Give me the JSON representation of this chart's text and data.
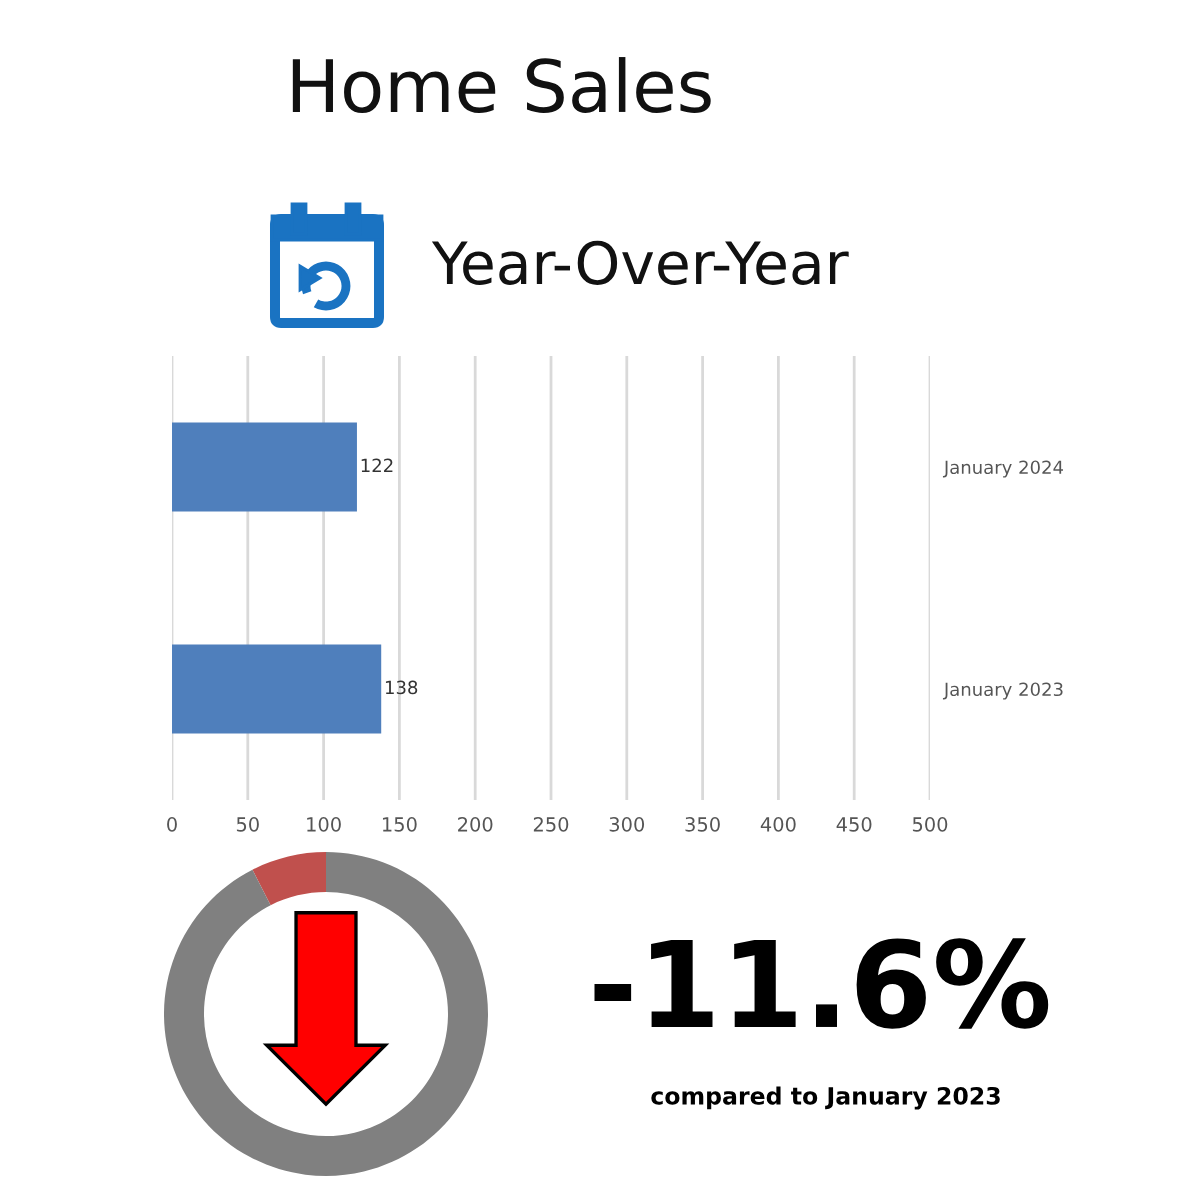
{
  "chart_data": [
    {
      "type": "bar",
      "title": "Home Sales",
      "subtitle": "Year-Over-Year",
      "orientation": "horizontal",
      "categories": [
        "January 2024",
        "January 2023"
      ],
      "values": [
        122,
        138
      ],
      "color": "#4f7fbc",
      "xlim": [
        0,
        500
      ],
      "xticks": [
        0,
        50,
        100,
        150,
        200,
        250,
        300,
        350,
        400,
        450,
        500
      ],
      "grid": "x",
      "data_labels": true
    },
    {
      "type": "donut",
      "categories": [
        null,
        null
      ],
      "values": [
        7.5,
        92.5
      ],
      "colors": [
        "#c0504d",
        "#808080"
      ],
      "annotations": [
        "-11.6%",
        "compared to January 2023"
      ]
    }
  ]
}
